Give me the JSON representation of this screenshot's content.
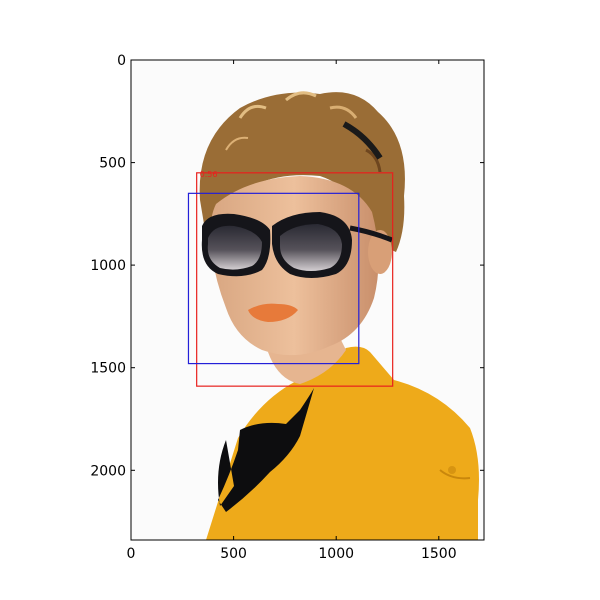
{
  "image_extent": {
    "width": 1720,
    "height": 2340
  },
  "axes": {
    "x_ticks": [
      "0",
      "500",
      "1000",
      "1500"
    ],
    "y_ticks": [
      "0",
      "500",
      "1000",
      "1500",
      "2000"
    ]
  },
  "detections": [
    {
      "name": "red-box",
      "label": "0.56",
      "color": "#e8201d",
      "x0": 320,
      "y0": 550,
      "x1": 1275,
      "y1": 1590
    },
    {
      "name": "blue-box",
      "label": "",
      "color": "#2420d8",
      "x0": 280,
      "y0": 650,
      "x1": 1110,
      "y1": 1480
    }
  ],
  "colors": {
    "frame": "#000000",
    "photo_background": "#fbfbfb",
    "shirt": "#eeaa1a",
    "skin": "#e6b590",
    "hair": "#9a6d36",
    "sunglasses": "#15151a",
    "bow": "#0d0d0f",
    "lips": "#e77a3a"
  }
}
